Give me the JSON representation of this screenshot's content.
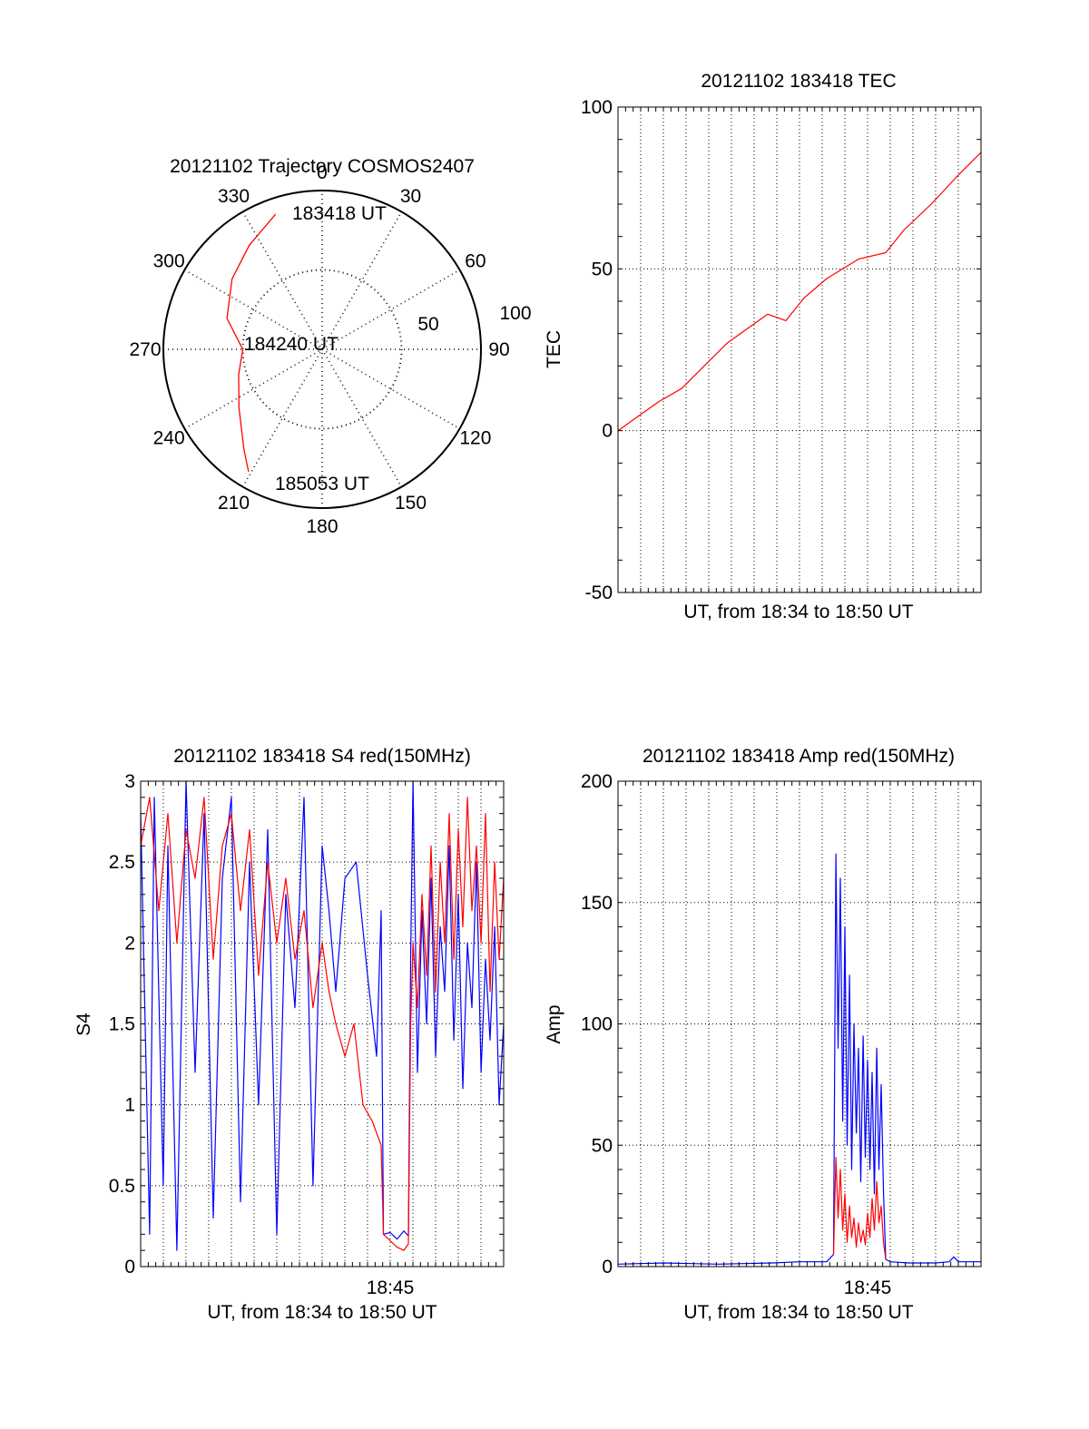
{
  "chart_data": [
    {
      "id": "polar",
      "type": "polar-trajectory",
      "title": "20121102 Trajectory COSMOS2407",
      "angle_labels": [
        {
          "deg": 0,
          "text": "0"
        },
        {
          "deg": 30,
          "text": "30"
        },
        {
          "deg": 60,
          "text": "60"
        },
        {
          "deg": 90,
          "text": "90"
        },
        {
          "deg": 120,
          "text": "120"
        },
        {
          "deg": 150,
          "text": "150"
        },
        {
          "deg": 180,
          "text": "180"
        },
        {
          "deg": 210,
          "text": "210"
        },
        {
          "deg": 240,
          "text": "240"
        },
        {
          "deg": 270,
          "text": "270"
        },
        {
          "deg": 300,
          "text": "300"
        },
        {
          "deg": 330,
          "text": "330"
        }
      ],
      "radial_labels": [
        "50",
        "100"
      ],
      "radial_ticks": [
        50,
        100
      ],
      "r_max": 100,
      "track_color": "#ff0000",
      "track": [
        {
          "az": 341,
          "r": 90
        },
        {
          "az": 325,
          "r": 80
        },
        {
          "az": 308,
          "r": 72
        },
        {
          "az": 288,
          "r": 63
        },
        {
          "az": 270,
          "r": 50
        },
        {
          "az": 253,
          "r": 55
        },
        {
          "az": 235,
          "r": 64
        },
        {
          "az": 218,
          "r": 80
        },
        {
          "az": 211,
          "r": 90
        }
      ],
      "time_labels": {
        "start": "183418 UT",
        "mid": "184240 UT",
        "end": "185053 UT"
      }
    },
    {
      "id": "tec",
      "type": "line",
      "title": "20121102 183418 TEC",
      "xlabel": "UT, from 18:34 to 18:50 UT",
      "ylabel": "TEC",
      "xlim": [
        18.5667,
        18.8333
      ],
      "ylim": [
        -50,
        100
      ],
      "yticks": [
        -50,
        0,
        50,
        100
      ],
      "ytick_labels": [
        "-50",
        "0",
        "50",
        "100"
      ],
      "grid": true,
      "series": [
        {
          "color": "#ff0000",
          "x": [
            18.5667,
            18.58,
            18.5967,
            18.6133,
            18.63,
            18.6467,
            18.6633,
            18.6767,
            18.69,
            18.7033,
            18.72,
            18.7433,
            18.7633,
            18.7767,
            18.7967,
            18.8167,
            18.8333
          ],
          "y": [
            0,
            4,
            9,
            13,
            20,
            27,
            32,
            36,
            34,
            41,
            47,
            53,
            55,
            62,
            70,
            79,
            86
          ]
        }
      ]
    },
    {
      "id": "s4",
      "type": "line",
      "title": "20121102 183418 S4 red(150MHz)",
      "xlabel": "UT, from 18:34 to 18:50 UT",
      "ylabel": "S4",
      "xlim": [
        18.5667,
        18.8333
      ],
      "ylim": [
        0,
        3
      ],
      "yticks": [
        0,
        0.5,
        1,
        1.5,
        2,
        2.5,
        3
      ],
      "ytick_labels": [
        "0",
        "0.5",
        "1",
        "1.5",
        "2",
        "2.5",
        "3"
      ],
      "xtick_value": 18.75,
      "xtick_label": "18:45",
      "grid": true,
      "series": [
        {
          "color": "#0000ff",
          "x": [
            18.5667,
            18.5733,
            18.5767,
            18.5833,
            18.5867,
            18.5933,
            18.6,
            18.6067,
            18.6133,
            18.62,
            18.6267,
            18.6333,
            18.64,
            18.6467,
            18.6533,
            18.66,
            18.6667,
            18.6733,
            18.68,
            18.6867,
            18.6933,
            18.7,
            18.705,
            18.71,
            18.7167,
            18.725,
            18.7333,
            18.74,
            18.7433,
            18.745,
            18.75,
            18.755,
            18.76,
            18.7633,
            18.765,
            18.7667,
            18.77,
            18.7733,
            18.7767,
            18.78,
            18.7833,
            18.7867,
            18.79,
            18.7933,
            18.7967,
            18.8,
            18.8033,
            18.8067,
            18.81,
            18.8133,
            18.8167,
            18.82,
            18.8233,
            18.8267,
            18.83,
            18.8333
          ],
          "y": [
            2.8,
            0.2,
            2.9,
            0.5,
            2.6,
            0.1,
            3.0,
            1.2,
            2.8,
            0.3,
            2.4,
            2.9,
            0.4,
            2.5,
            1.0,
            2.7,
            0.2,
            2.3,
            1.6,
            2.9,
            0.5,
            2.6,
            2.2,
            1.7,
            2.4,
            2.5,
            1.8,
            1.3,
            2.2,
            0.2,
            0.21,
            0.17,
            0.22,
            0.19,
            1.9,
            3.0,
            1.2,
            2.2,
            1.5,
            2.4,
            1.3,
            2.1,
            1.7,
            2.6,
            1.4,
            2.3,
            1.1,
            2.0,
            1.6,
            2.5,
            1.2,
            1.9,
            1.4,
            2.1,
            1.0,
            1.5
          ]
        },
        {
          "color": "#ff0000",
          "x": [
            18.5667,
            18.5733,
            18.58,
            18.5867,
            18.5933,
            18.6,
            18.6067,
            18.6133,
            18.62,
            18.6267,
            18.6333,
            18.64,
            18.6467,
            18.6533,
            18.66,
            18.6667,
            18.6733,
            18.68,
            18.6867,
            18.6933,
            18.7,
            18.705,
            18.71,
            18.7167,
            18.7233,
            18.73,
            18.7367,
            18.7433,
            18.745,
            18.75,
            18.755,
            18.76,
            18.7633,
            18.765,
            18.7667,
            18.77,
            18.7733,
            18.7767,
            18.78,
            18.7833,
            18.7867,
            18.79,
            18.7933,
            18.7967,
            18.8,
            18.8033,
            18.8067,
            18.81,
            18.8133,
            18.8167,
            18.82,
            18.8233,
            18.8267,
            18.83,
            18.8333
          ],
          "y": [
            2.6,
            2.9,
            2.2,
            2.8,
            2.0,
            2.7,
            2.4,
            2.9,
            1.9,
            2.6,
            2.8,
            2.2,
            2.7,
            1.8,
            2.5,
            2.0,
            2.4,
            1.9,
            2.2,
            1.6,
            2.0,
            1.7,
            1.5,
            1.3,
            1.5,
            1.0,
            0.9,
            0.75,
            0.2,
            0.16,
            0.12,
            0.1,
            0.14,
            1.5,
            2.0,
            1.6,
            2.3,
            1.8,
            2.6,
            1.7,
            2.5,
            2.0,
            2.8,
            1.9,
            2.7,
            2.1,
            2.9,
            2.2,
            2.6,
            2.0,
            2.8,
            1.7,
            2.5,
            1.9,
            2.4
          ]
        }
      ]
    },
    {
      "id": "amp",
      "type": "line",
      "title": "20121102 183418 Amp red(150MHz)",
      "xlabel": "UT, from 18:34 to 18:50 UT",
      "ylabel": "Amp",
      "xlim": [
        18.5667,
        18.8333
      ],
      "ylim": [
        0,
        200
      ],
      "yticks": [
        0,
        50,
        100,
        150,
        200
      ],
      "ytick_labels": [
        "0",
        "50",
        "100",
        "150",
        "200"
      ],
      "xtick_value": 18.75,
      "xtick_label": "18:45",
      "grid": true,
      "series": [
        {
          "color": "#0000ff",
          "x": [
            18.5667,
            18.6,
            18.64,
            18.68,
            18.7,
            18.72,
            18.725,
            18.7267,
            18.7283,
            18.73,
            18.7317,
            18.7333,
            18.735,
            18.7367,
            18.7383,
            18.74,
            18.7417,
            18.7433,
            18.745,
            18.7467,
            18.7483,
            18.75,
            18.7517,
            18.7533,
            18.755,
            18.7567,
            18.7583,
            18.76,
            18.7617,
            18.7633,
            18.7667,
            18.78,
            18.8,
            18.81,
            18.8133,
            18.8167,
            18.8333
          ],
          "y": [
            1,
            1.5,
            1,
            1.5,
            2,
            2,
            5,
            170,
            90,
            160,
            60,
            140,
            50,
            120,
            40,
            100,
            55,
            90,
            35,
            95,
            45,
            85,
            40,
            80,
            30,
            90,
            40,
            75,
            30,
            3,
            2,
            1.5,
            1.5,
            2,
            4,
            2,
            2
          ]
        },
        {
          "color": "#ff0000",
          "x": [
            18.725,
            18.7267,
            18.7283,
            18.73,
            18.7317,
            18.7333,
            18.735,
            18.7367,
            18.7383,
            18.74,
            18.7417,
            18.7433,
            18.745,
            18.7467,
            18.7483,
            18.75,
            18.7517,
            18.7533,
            18.755,
            18.7567,
            18.7583,
            18.76,
            18.7617,
            18.7633
          ],
          "y": [
            5,
            45,
            20,
            40,
            15,
            30,
            10,
            25,
            12,
            20,
            8,
            18,
            10,
            15,
            9,
            22,
            12,
            28,
            15,
            35,
            18,
            25,
            10,
            3
          ]
        }
      ]
    }
  ]
}
